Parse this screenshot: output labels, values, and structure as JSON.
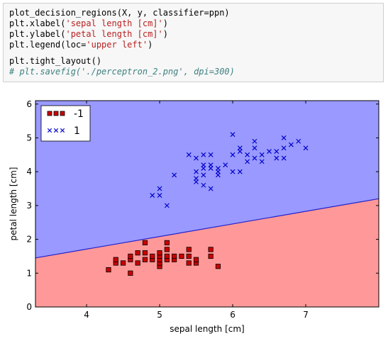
{
  "code": {
    "line1_prefix": "plot_decision_regions(X, y, classifier=ppn)",
    "line2_prefix": "plt.xlabel(",
    "line2_str": "'sepal length [cm]'",
    "line2_suffix": ")",
    "line3_prefix": "plt.ylabel(",
    "line3_str": "'petal length [cm]'",
    "line3_suffix": ")",
    "line4_prefix": "plt.legend(loc=",
    "line4_str": "'upper left'",
    "line4_suffix": ")",
    "line5": "plt.tight_layout()",
    "line6_comment": "# plt.savefig('./perceptron_2.png', dpi=300)"
  },
  "chart_data": {
    "type": "scatter",
    "xlabel": "sepal length [cm]",
    "ylabel": "petal length [cm]",
    "xlim": [
      3.3,
      8.0
    ],
    "ylim": [
      0,
      6.1
    ],
    "xticks": [
      4,
      5,
      6,
      7
    ],
    "yticks": [
      0,
      1,
      2,
      3,
      4,
      5,
      6
    ],
    "legend_position": "upper-left",
    "decision_boundary": {
      "x": [
        3.3,
        8.0
      ],
      "y": [
        1.45,
        3.2
      ]
    },
    "regions": [
      {
        "label": "-1",
        "color": "#ff9999",
        "side": "below"
      },
      {
        "label": "1",
        "color": "#9999ff",
        "side": "above"
      }
    ],
    "series": [
      {
        "name": "-1",
        "marker": "square",
        "color": "#cc0000",
        "points": [
          [
            4.3,
            1.1
          ],
          [
            4.4,
            1.3
          ],
          [
            4.4,
            1.4
          ],
          [
            4.5,
            1.3
          ],
          [
            4.6,
            1.0
          ],
          [
            4.6,
            1.4
          ],
          [
            4.6,
            1.5
          ],
          [
            4.7,
            1.3
          ],
          [
            4.7,
            1.6
          ],
          [
            4.8,
            1.4
          ],
          [
            4.8,
            1.6
          ],
          [
            4.8,
            1.9
          ],
          [
            4.9,
            1.4
          ],
          [
            4.9,
            1.5
          ],
          [
            5.0,
            1.2
          ],
          [
            5.0,
            1.3
          ],
          [
            5.0,
            1.4
          ],
          [
            5.0,
            1.5
          ],
          [
            5.0,
            1.6
          ],
          [
            5.1,
            1.4
          ],
          [
            5.1,
            1.5
          ],
          [
            5.1,
            1.7
          ],
          [
            5.1,
            1.9
          ],
          [
            5.2,
            1.4
          ],
          [
            5.2,
            1.5
          ],
          [
            5.3,
            1.5
          ],
          [
            5.4,
            1.3
          ],
          [
            5.4,
            1.5
          ],
          [
            5.4,
            1.7
          ],
          [
            5.5,
            1.3
          ],
          [
            5.5,
            1.4
          ],
          [
            5.7,
            1.5
          ],
          [
            5.7,
            1.7
          ],
          [
            5.8,
            1.2
          ]
        ]
      },
      {
        "name": "1",
        "marker": "x",
        "color": "#0000cc",
        "points": [
          [
            4.9,
            3.3
          ],
          [
            5.0,
            3.3
          ],
          [
            5.0,
            3.5
          ],
          [
            5.1,
            3.0
          ],
          [
            5.2,
            3.9
          ],
          [
            5.4,
            4.5
          ],
          [
            5.5,
            4.0
          ],
          [
            5.5,
            3.8
          ],
          [
            5.5,
            3.7
          ],
          [
            5.5,
            4.4
          ],
          [
            5.6,
            4.5
          ],
          [
            5.6,
            4.1
          ],
          [
            5.6,
            3.9
          ],
          [
            5.6,
            3.6
          ],
          [
            5.6,
            4.2
          ],
          [
            5.7,
            4.5
          ],
          [
            5.7,
            4.2
          ],
          [
            5.7,
            4.1
          ],
          [
            5.7,
            3.5
          ],
          [
            5.8,
            4.0
          ],
          [
            5.8,
            3.9
          ],
          [
            5.8,
            4.1
          ],
          [
            5.9,
            4.2
          ],
          [
            6.0,
            4.0
          ],
          [
            6.0,
            4.5
          ],
          [
            6.0,
            5.1
          ],
          [
            6.1,
            4.7
          ],
          [
            6.1,
            4.6
          ],
          [
            6.1,
            4.0
          ],
          [
            6.2,
            4.3
          ],
          [
            6.2,
            4.5
          ],
          [
            6.3,
            4.4
          ],
          [
            6.3,
            4.7
          ],
          [
            6.3,
            4.9
          ],
          [
            6.4,
            4.3
          ],
          [
            6.4,
            4.5
          ],
          [
            6.5,
            4.6
          ],
          [
            6.6,
            4.6
          ],
          [
            6.6,
            4.4
          ],
          [
            6.7,
            4.4
          ],
          [
            6.7,
            4.7
          ],
          [
            6.7,
            5.0
          ],
          [
            6.8,
            4.8
          ],
          [
            6.9,
            4.9
          ],
          [
            7.0,
            4.7
          ]
        ]
      }
    ]
  }
}
